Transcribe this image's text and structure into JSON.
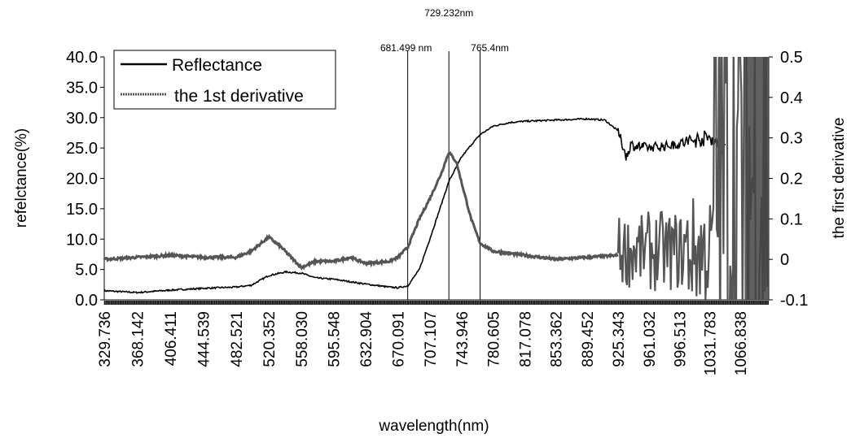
{
  "chart_data": {
    "type": "line",
    "xlabel": "wavelength(nm)",
    "ylabel_left": "refelctance(%)",
    "ylabel_right": "the first derivative",
    "x_tick_labels": [
      "329.736",
      "368.142",
      "406.411",
      "444.539",
      "482.521",
      "520.352",
      "558.030",
      "595.548",
      "632.904",
      "670.091",
      "707.107",
      "743.946",
      "780.605",
      "817.078",
      "853.362",
      "889.452",
      "925.343",
      "961.032",
      "996.513",
      "1031.783",
      "1066.838"
    ],
    "ylim_left": [
      0,
      40
    ],
    "yticks_left": [
      "0.0",
      "5.0",
      "10.0",
      "15.0",
      "20.0",
      "25.0",
      "30.0",
      "35.0",
      "40.0"
    ],
    "ylim_right": [
      -0.1,
      0.5
    ],
    "yticks_right": [
      "-0.1",
      "0",
      "0.1",
      "0.2",
      "0.3",
      "0.4",
      "0.5"
    ],
    "legend_position": "top-left",
    "grid": false,
    "vlines": [
      {
        "x": 681.499,
        "label": "681.499 nm"
      },
      {
        "x": 729.232,
        "label": "729.232nm"
      },
      {
        "x": 765.4,
        "label": "765.4nm"
      }
    ],
    "series": [
      {
        "name": "Reflectance",
        "axis": "left",
        "color": "#000000",
        "x": [
          329.7,
          368.1,
          406.4,
          444.5,
          482.5,
          500,
          520.4,
          540,
          558.0,
          575,
          595.5,
          632.9,
          660,
          670.1,
          681.5,
          695,
          707.1,
          720,
          729.2,
          743.9,
          755,
          765.4,
          780.6,
          800,
          817.1,
          853.4,
          889.5,
          910,
          925.3,
          935,
          940,
          961.0,
          996.5,
          1010,
          1031.8,
          1045,
          1050
        ],
        "values": [
          1.5,
          1.2,
          1.6,
          1.9,
          2.1,
          2.4,
          4.0,
          4.6,
          4.4,
          3.6,
          3.4,
          2.6,
          2.1,
          2.0,
          2.3,
          5.0,
          10.0,
          15.5,
          19.5,
          23.5,
          25.5,
          27.2,
          28.6,
          29.2,
          29.4,
          29.6,
          29.8,
          29.6,
          27.8,
          23.5,
          25.5,
          25.0,
          25.7,
          26.2,
          26.8,
          25.0,
          25.5
        ],
        "noise_from": 925.3
      },
      {
        "name": "the 1st derivative",
        "axis": "right",
        "color": "#555555",
        "x": [
          329.7,
          368.1,
          406.4,
          444.5,
          482.5,
          500,
          520.4,
          535,
          558.0,
          575,
          595.5,
          615,
          632.9,
          660,
          670.1,
          681.5,
          695,
          707.1,
          720,
          729.2,
          738,
          743.9,
          755,
          765.4,
          780.6,
          817.1,
          853.4,
          889.5,
          925.3
        ],
        "values": [
          0.0,
          0.005,
          0.01,
          0.005,
          0.005,
          0.02,
          0.055,
          0.03,
          -0.02,
          -0.005,
          -0.005,
          0.005,
          -0.01,
          -0.005,
          0.005,
          0.03,
          0.1,
          0.15,
          0.21,
          0.265,
          0.24,
          0.19,
          0.1,
          0.04,
          0.02,
          0.01,
          0.0,
          0.005,
          0.01
        ],
        "noise_from": 925.3
      }
    ]
  }
}
